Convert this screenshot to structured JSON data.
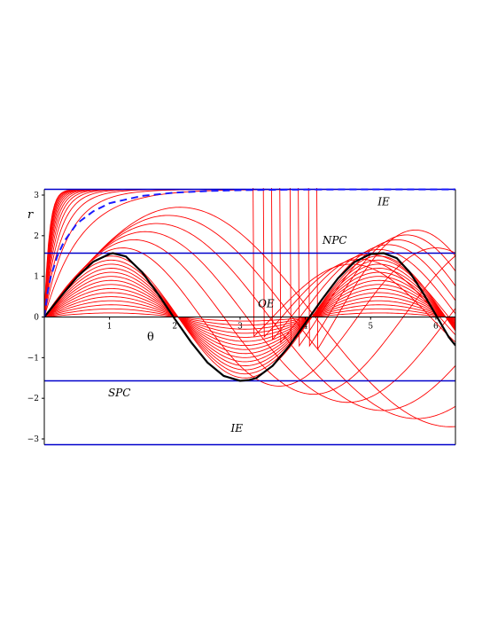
{
  "chart_data": {
    "type": "line",
    "xlabel": "θ",
    "ylabel": "r",
    "xlim": [
      0,
      6.3
    ],
    "ylim": [
      -3.14159,
      3.14159
    ],
    "x_ticks": [
      1,
      2,
      3,
      4,
      5,
      6
    ],
    "x_tick_labels": [
      "1",
      "2",
      "3",
      "4",
      "5",
      "6"
    ],
    "y_ticks": [
      -3,
      -2,
      -1,
      0,
      1,
      2,
      3
    ],
    "y_tick_labels": [
      "−3",
      "−2",
      "−1",
      "0",
      "1",
      "2",
      "3"
    ],
    "grid": false,
    "legend": "none",
    "colors": {
      "family": "#ff0000",
      "highlight": "#000000",
      "reference": "#0000cc",
      "separatrix": "#1a1aff"
    },
    "reference_lines": [
      3.14159,
      1.5708,
      0,
      -1.5708,
      -3.14159
    ],
    "region_labels": [
      {
        "text": "IE",
        "x": 5.2,
        "y": 2.75
      },
      {
        "text": "NPC",
        "x": 4.45,
        "y": 1.8
      },
      {
        "text": "OE",
        "x": 3.4,
        "y": 0.24
      },
      {
        "text": "SPC",
        "x": 1.15,
        "y": -1.95
      },
      {
        "text": "IE",
        "x": 2.95,
        "y": -2.83
      }
    ],
    "highlight_curve": {
      "name": "",
      "x": [
        0,
        0.25,
        0.5,
        0.75,
        1.0,
        1.05,
        1.25,
        1.5,
        1.75,
        2.0,
        2.25,
        2.5,
        2.75,
        3.0,
        3.14,
        3.25,
        3.5,
        3.75,
        4.0,
        4.25,
        4.5,
        4.75,
        5.0,
        5.2,
        5.4,
        5.6,
        5.8,
        6.0,
        6.2,
        6.3
      ],
      "y": [
        0,
        0.5,
        0.98,
        1.36,
        1.55,
        1.57,
        1.49,
        1.1,
        0.55,
        -0.05,
        -0.62,
        -1.12,
        -1.45,
        -1.57,
        -1.55,
        -1.5,
        -1.2,
        -0.72,
        -0.15,
        0.42,
        0.95,
        1.35,
        1.55,
        1.57,
        1.45,
        1.1,
        0.6,
        0.05,
        -0.5,
        -0.7
      ]
    },
    "separatrix": {
      "name": "",
      "x": [
        0,
        0.05,
        0.1,
        0.2,
        0.3,
        0.5,
        0.75,
        1.0,
        1.5,
        2.0,
        2.5,
        3.0,
        3.5,
        4.0,
        5.0,
        6.3
      ],
      "y": [
        0,
        0.6,
        1.0,
        1.5,
        1.85,
        2.3,
        2.6,
        2.8,
        2.98,
        3.06,
        3.1,
        3.12,
        3.13,
        3.135,
        3.14,
        3.14
      ]
    },
    "family_curves_count": 36
  }
}
